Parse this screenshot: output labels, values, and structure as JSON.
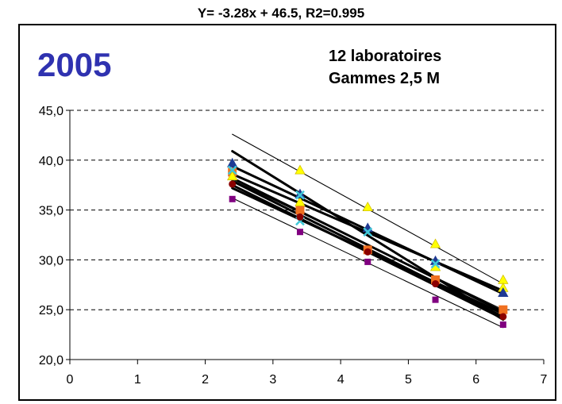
{
  "chart_data": {
    "type": "scatter",
    "title": "Y= -3.28x + 46.5,  R2=0.995",
    "inset_title": "2005",
    "annotations": [
      "12 laboratoires",
      "Gammes 2,5 M"
    ],
    "xlim": [
      0,
      7
    ],
    "ylim": [
      20,
      45
    ],
    "x_ticks": [
      "0",
      "1",
      "2",
      "3",
      "4",
      "5",
      "6",
      "7"
    ],
    "y_ticks": [
      "20,0",
      "25,0",
      "30,0",
      "35,0",
      "40,0",
      "45,0"
    ],
    "grid": "horizontal-dashed",
    "legend": "none",
    "points": [
      {
        "shape": "square",
        "color": "#f07020",
        "x": 2.4,
        "y": 38.8
      },
      {
        "shape": "square",
        "color": "#f07020",
        "x": 3.4,
        "y": 35.0
      },
      {
        "shape": "square",
        "color": "#f07020",
        "x": 4.4,
        "y": 31.0
      },
      {
        "shape": "square",
        "color": "#f07020",
        "x": 5.4,
        "y": 28.0
      },
      {
        "shape": "square",
        "color": "#f07020",
        "x": 6.4,
        "y": 25.0
      },
      {
        "shape": "square",
        "color": "#800080",
        "x": 2.4,
        "y": 36.1
      },
      {
        "shape": "square",
        "color": "#800080",
        "x": 3.4,
        "y": 32.8
      },
      {
        "shape": "square",
        "color": "#800080",
        "x": 4.4,
        "y": 29.8
      },
      {
        "shape": "square",
        "color": "#800080",
        "x": 5.4,
        "y": 26.0
      },
      {
        "shape": "square",
        "color": "#800080",
        "x": 6.4,
        "y": 23.5
      },
      {
        "shape": "triangle",
        "color": "#ffff00",
        "x": 2.4,
        "y": 38.4
      },
      {
        "shape": "triangle",
        "color": "#ffff00",
        "x": 3.4,
        "y": 39.0
      },
      {
        "shape": "triangle",
        "color": "#ffff00",
        "x": 4.4,
        "y": 35.3
      },
      {
        "shape": "triangle",
        "color": "#ffff00",
        "x": 5.4,
        "y": 31.6
      },
      {
        "shape": "triangle",
        "color": "#ffff00",
        "x": 6.4,
        "y": 28.0
      },
      {
        "shape": "triangle",
        "color": "#ffff00",
        "x": 3.4,
        "y": 35.8
      },
      {
        "shape": "triangle",
        "color": "#ffff00",
        "x": 5.4,
        "y": 29.3
      },
      {
        "shape": "triangle",
        "color": "#ffff00",
        "x": 6.4,
        "y": 27.2
      },
      {
        "shape": "triangle",
        "color": "#1f3a93",
        "x": 2.4,
        "y": 39.7
      },
      {
        "shape": "triangle",
        "color": "#1f3a93",
        "x": 3.4,
        "y": 36.6
      },
      {
        "shape": "triangle",
        "color": "#1f3a93",
        "x": 4.4,
        "y": 33.2
      },
      {
        "shape": "triangle",
        "color": "#1f3a93",
        "x": 5.4,
        "y": 29.9
      },
      {
        "shape": "triangle",
        "color": "#1f3a93",
        "x": 6.4,
        "y": 26.7
      },
      {
        "shape": "x",
        "color": "#40c8d8",
        "x": 2.4,
        "y": 39.0
      },
      {
        "shape": "x",
        "color": "#40c8d8",
        "x": 3.4,
        "y": 36.5
      },
      {
        "shape": "x",
        "color": "#40c8d8",
        "x": 3.4,
        "y": 33.9
      },
      {
        "shape": "x",
        "color": "#40c8d8",
        "x": 4.4,
        "y": 32.8
      },
      {
        "shape": "x",
        "color": "#40c8d8",
        "x": 5.4,
        "y": 29.6
      },
      {
        "shape": "circle",
        "color": "#8b0000",
        "x": 2.4,
        "y": 37.6
      },
      {
        "shape": "circle",
        "color": "#8b0000",
        "x": 3.4,
        "y": 34.3
      },
      {
        "shape": "circle",
        "color": "#8b0000",
        "x": 4.4,
        "y": 30.8
      },
      {
        "shape": "circle",
        "color": "#8b0000",
        "x": 5.4,
        "y": 27.6
      },
      {
        "shape": "circle",
        "color": "#8b0000",
        "x": 6.4,
        "y": 24.3
      }
    ],
    "fit_lines": [
      {
        "x1": 2.4,
        "y1": 42.6,
        "x2": 6.4,
        "y2": 27.6,
        "weight": "thin"
      },
      {
        "x1": 2.4,
        "y1": 36.2,
        "x2": 6.4,
        "y2": 23.2,
        "weight": "thin"
      },
      {
        "x1": 2.4,
        "y1": 40.9,
        "x2": 6.4,
        "y2": 24.0,
        "weight": "bold"
      },
      {
        "x1": 2.4,
        "y1": 39.4,
        "x2": 6.4,
        "y2": 26.6,
        "weight": "bold"
      },
      {
        "x1": 2.4,
        "y1": 38.6,
        "x2": 6.4,
        "y2": 26.9,
        "weight": "bold"
      },
      {
        "x1": 2.4,
        "y1": 38.2,
        "x2": 6.4,
        "y2": 24.8,
        "weight": "bold"
      },
      {
        "x1": 2.4,
        "y1": 37.9,
        "x2": 6.4,
        "y2": 24.3,
        "weight": "bold"
      },
      {
        "x1": 2.4,
        "y1": 37.5,
        "x2": 6.4,
        "y2": 24.1,
        "weight": "bold"
      },
      {
        "x1": 2.4,
        "y1": 37.2,
        "x2": 6.4,
        "y2": 24.6,
        "weight": "bold"
      },
      {
        "x1": 2.4,
        "y1": 38.0,
        "x2": 6.4,
        "y2": 25.0,
        "weight": "thin"
      }
    ]
  }
}
